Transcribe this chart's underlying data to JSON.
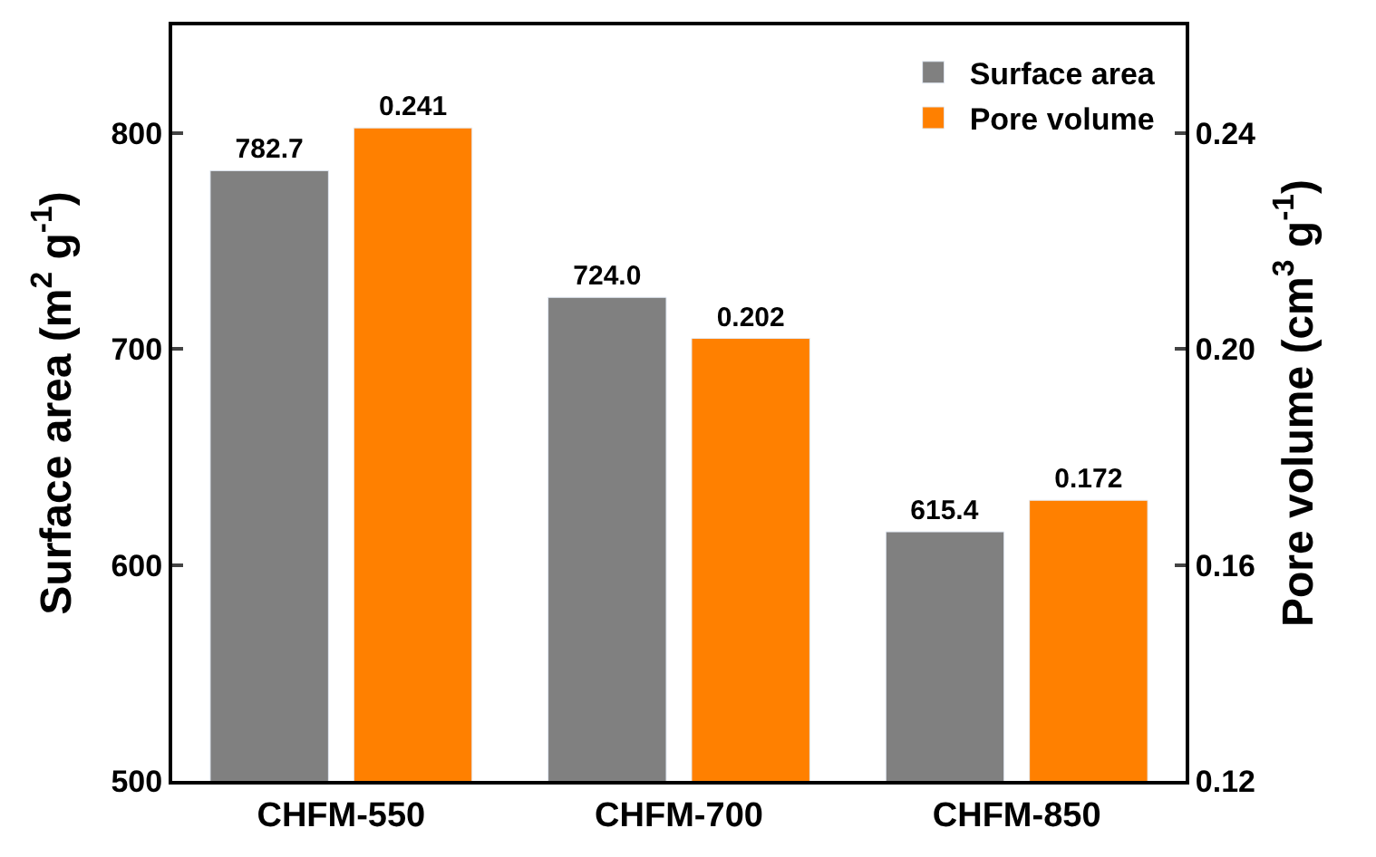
{
  "chart_data": {
    "type": "bar",
    "categories": [
      "CHFM-550",
      "CHFM-700",
      "CHFM-850"
    ],
    "ylabel": "Surface area (m$^{2}$ g$^{-1}$)",
    "y2label": "Pore volume (cm$^{3}$ g$^{-1}$)",
    "ylim": [
      500,
      850
    ],
    "yticks": [
      500,
      600,
      700,
      800
    ],
    "y2lim": [
      0.12,
      0.26
    ],
    "y2ticks": [
      {
        "value": 0.12,
        "label": "0.12"
      },
      {
        "value": 0.16,
        "label": "0.16"
      },
      {
        "value": 0.2,
        "label": "0.20"
      },
      {
        "value": 0.24,
        "label": "0.24"
      }
    ],
    "series": [
      {
        "name": "Surface area",
        "color": "#808080",
        "values": [
          782.7,
          724.0,
          615.4
        ],
        "value_labels": [
          "782.7",
          "724.0",
          "615.4"
        ]
      },
      {
        "name": "Pore volume",
        "color": "#ff8000",
        "axis": "y2",
        "values": [
          0.241,
          0.202,
          0.172
        ],
        "value_labels": [
          "0.241",
          "0.202",
          "0.172"
        ]
      }
    ],
    "legend": "top right"
  }
}
